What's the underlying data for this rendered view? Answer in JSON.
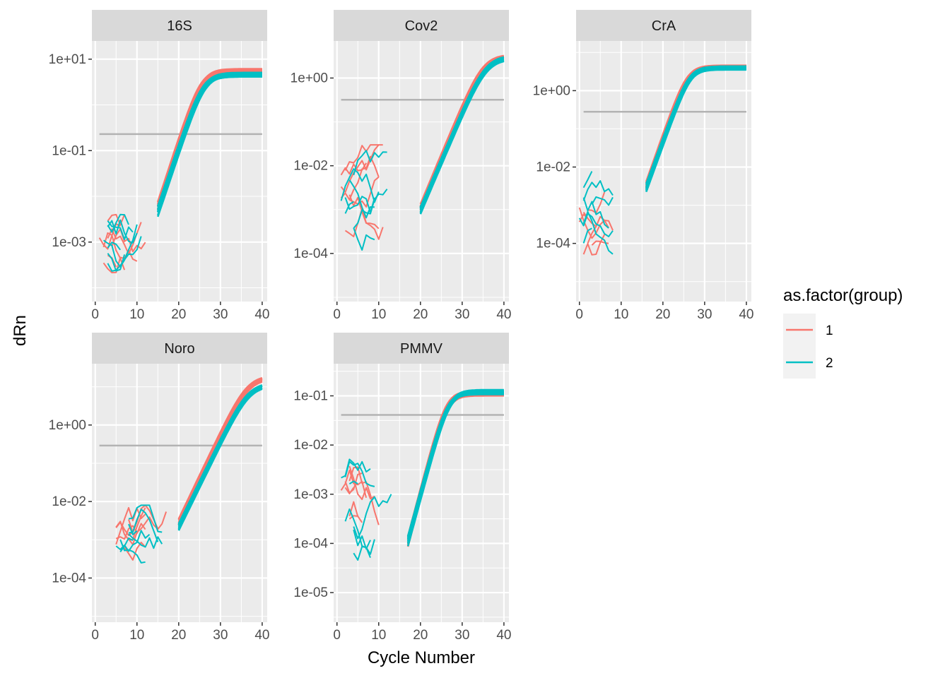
{
  "chart_data": {
    "type": "line",
    "xlabel": "Cycle Number",
    "ylabel": "dRn",
    "y_scale": "log10",
    "xlim": [
      -0.8,
      41.2
    ],
    "x_ticks": [
      0,
      10,
      20,
      30,
      40
    ],
    "x_tick_labels": [
      "0",
      "10",
      "20",
      "30",
      "40"
    ],
    "grid": true,
    "colors": {
      "group_1": "#F8766D",
      "group_2": "#00BFC4",
      "threshold": "#B3B3B3",
      "panel_bg": "#EBEBEB",
      "strip_bg": "#D9D9D9",
      "grid": "#FFFFFF"
    },
    "legend": {
      "title": "as.factor(group)",
      "position": "right",
      "entries": [
        {
          "label": "1",
          "color": "#F8766D"
        },
        {
          "label": "2",
          "color": "#00BFC4"
        }
      ]
    },
    "panels": [
      {
        "title": "16S",
        "ylim": [
          5e-05,
          25
        ],
        "y_ticks": [
          0.001,
          0.1,
          10
        ],
        "y_tick_labels": [
          "1e-03",
          "1e-01",
          "1e+01"
        ],
        "threshold": 0.23,
        "curves": {
          "group_1": {
            "plateau": 5.5,
            "midpoint": 25.6,
            "slope": 1.55,
            "count": 10,
            "spread": 0.35
          },
          "group_2": {
            "plateau": 4.6,
            "midpoint": 26.0,
            "slope": 1.6,
            "count": 10,
            "spread": 0.35
          },
          "start_cycle": 15
        },
        "noise": {
          "x_range": [
            1,
            14
          ],
          "y_range": [
            0.00014,
            0.004
          ]
        }
      },
      {
        "title": "Cov2",
        "ylim": [
          8e-06,
          7
        ],
        "y_ticks": [
          0.0001,
          0.01,
          1
        ],
        "y_tick_labels": [
          "1e-04",
          "1e-02",
          "1e+00"
        ],
        "threshold": 0.32,
        "curves": {
          "group_1": {
            "plateau": 3.2,
            "midpoint": 35.2,
            "slope": 1.9,
            "count": 10,
            "spread": 0.35
          },
          "group_2": {
            "plateau": 3.0,
            "midpoint": 35.6,
            "slope": 1.95,
            "count": 10,
            "spread": 0.4
          },
          "start_cycle": 20
        },
        "noise": {
          "x_range": [
            1,
            19
          ],
          "y_range": [
            2e-05,
            0.03
          ]
        }
      },
      {
        "title": "CrA",
        "ylim": [
          3e-06,
          20
        ],
        "y_ticks": [
          0.0001,
          0.01,
          1
        ],
        "y_tick_labels": [
          "1e-04",
          "1e-02",
          "1e+00"
        ],
        "threshold": 0.28,
        "curves": {
          "group_1": {
            "plateau": 4.1,
            "midpoint": 25.9,
            "slope": 1.4,
            "count": 10,
            "spread": 0.3
          },
          "group_2": {
            "plateau": 4.0,
            "midpoint": 26.5,
            "slope": 1.45,
            "count": 10,
            "spread": 0.35
          },
          "start_cycle": 16
        },
        "noise": {
          "x_range": [
            0,
            17
          ],
          "y_range": [
            6e-06,
            0.01
          ]
        }
      },
      {
        "title": "Noro",
        "ylim": [
          7e-06,
          40
        ],
        "y_ticks": [
          0.0001,
          0.01,
          1
        ],
        "y_tick_labels": [
          "1e-04",
          "1e-02",
          "1e+00"
        ],
        "threshold": 0.29,
        "curves": {
          "group_1": {
            "plateau": 18.0,
            "midpoint": 36.6,
            "slope": 1.9,
            "count": 10,
            "spread": 0.4
          },
          "group_2": {
            "plateau": 12.0,
            "midpoint": 37.0,
            "slope": 1.95,
            "count": 10,
            "spread": 0.55
          },
          "start_cycle": 20
        },
        "noise": {
          "x_range": [
            5,
            20
          ],
          "y_range": [
            3e-05,
            0.008
          ]
        }
      },
      {
        "title": "PMMV",
        "ylim": [
          2.5e-06,
          0.45
        ],
        "y_ticks": [
          1e-05,
          0.0001,
          0.001,
          0.01,
          0.1
        ],
        "y_tick_labels": [
          "1e-05",
          "1e-04",
          "1e-03",
          "1e-02",
          "1e-01"
        ],
        "threshold": 0.041,
        "curves": {
          "group_1": {
            "plateau": 0.115,
            "midpoint": 26.4,
            "slope": 1.35,
            "count": 10,
            "spread": 0.3
          },
          "group_2": {
            "plateau": 0.12,
            "midpoint": 26.8,
            "slope": 1.4,
            "count": 10,
            "spread": 0.45
          },
          "start_cycle": 17
        },
        "noise": {
          "x_range": [
            1,
            18
          ],
          "y_range": [
            7e-06,
            0.015
          ]
        }
      }
    ]
  }
}
